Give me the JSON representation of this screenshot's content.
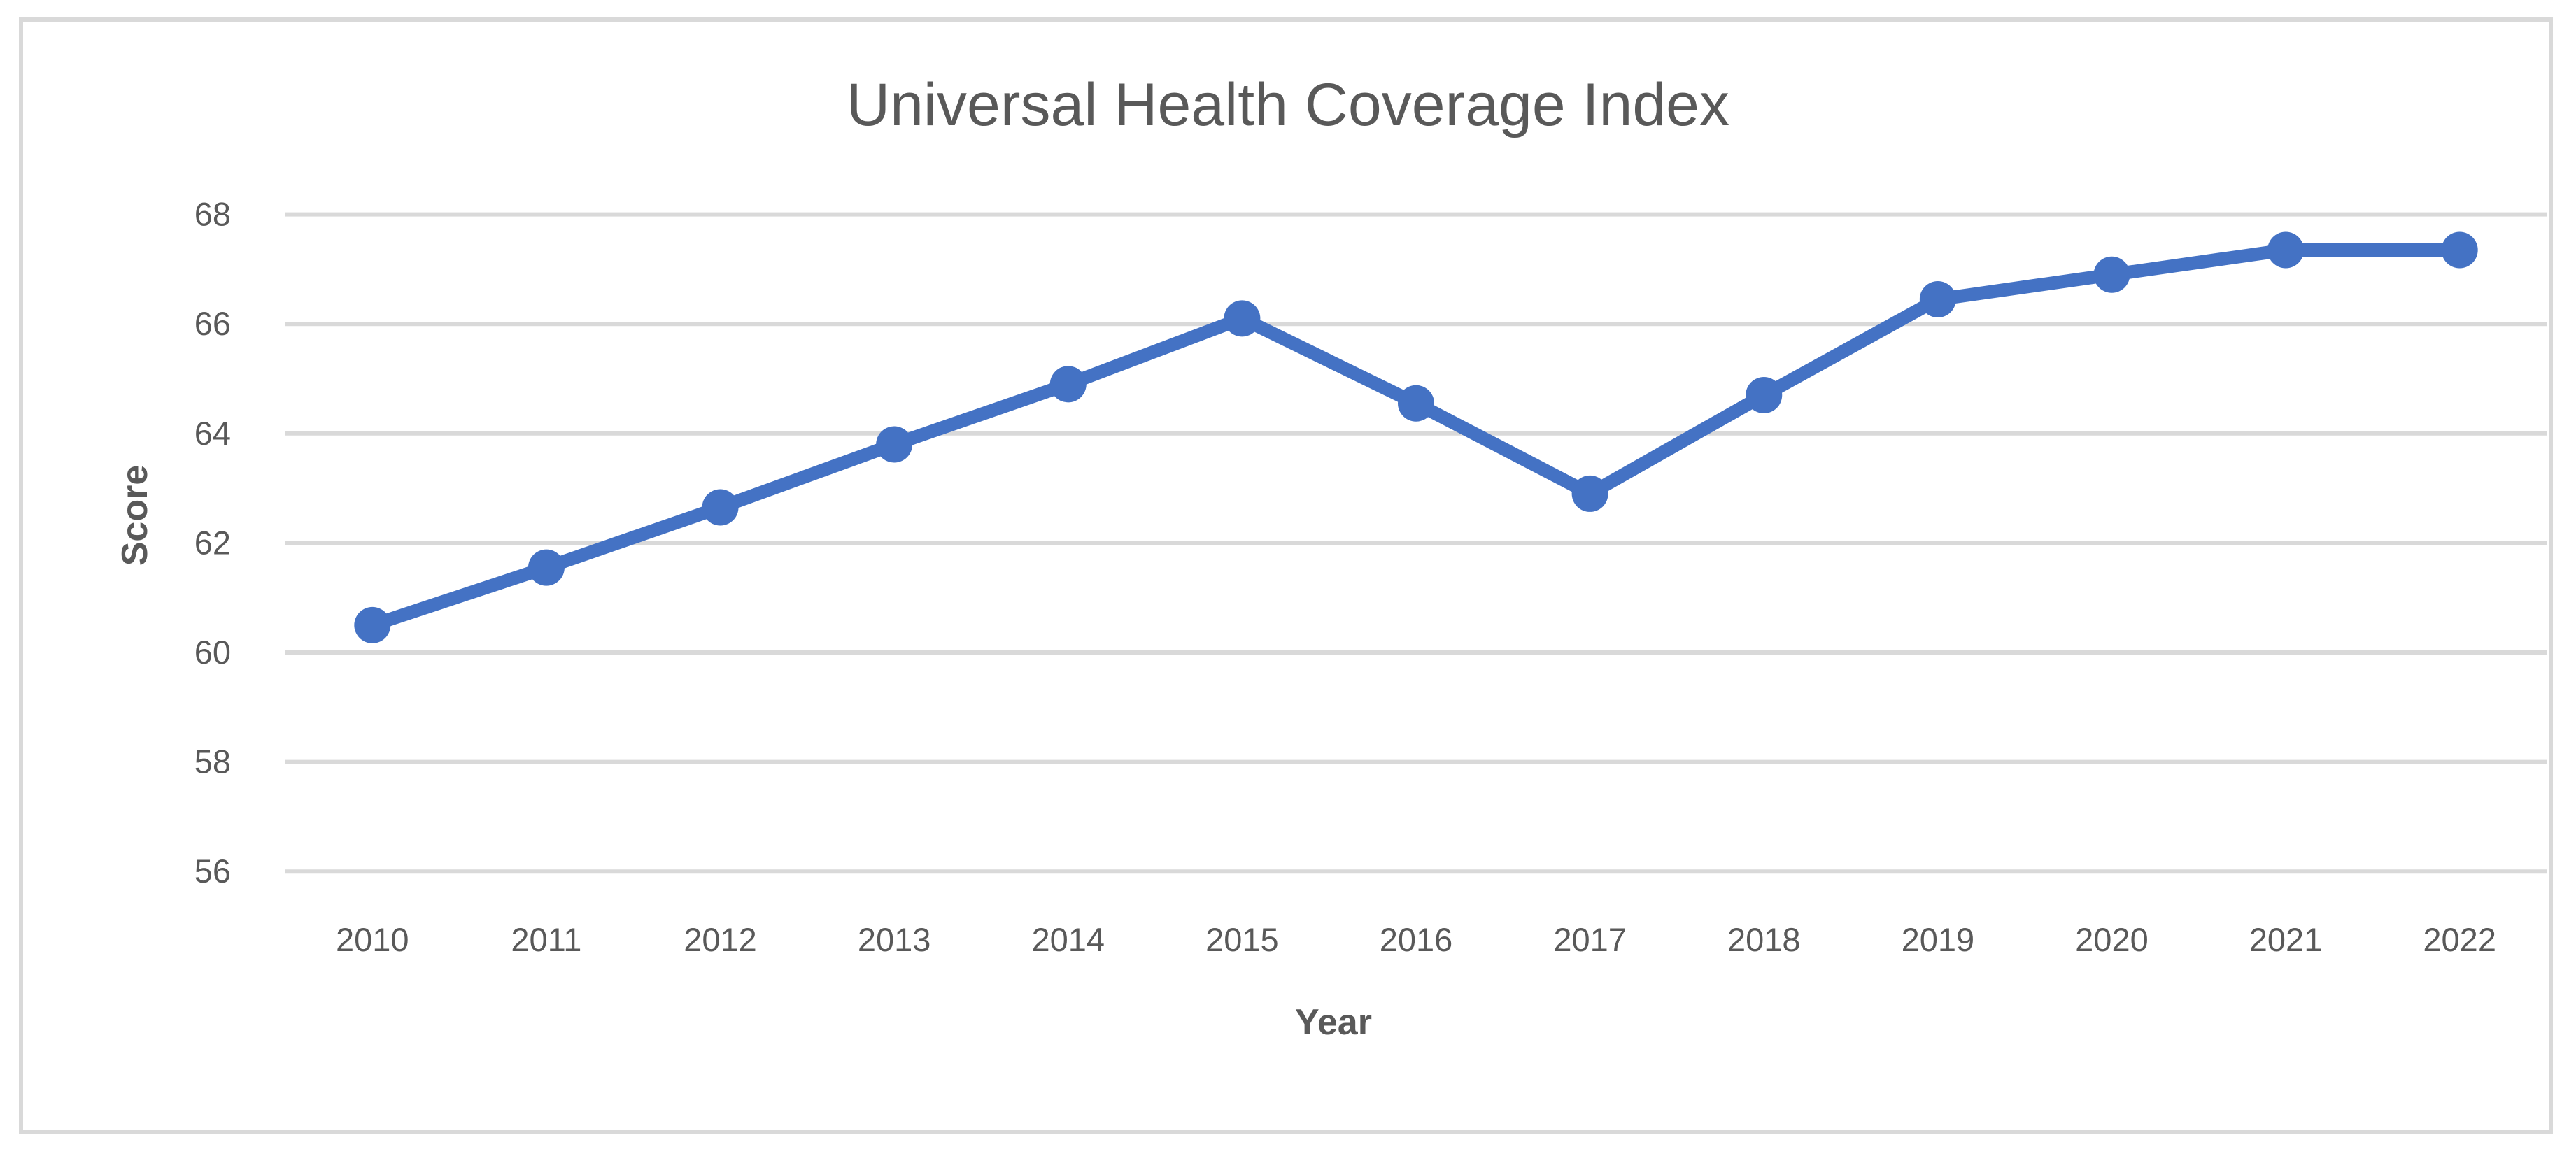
{
  "chart": {
    "title": "Universal Health Coverage Index",
    "y_axis_title": "Score",
    "x_axis_title": "Year",
    "colors": {
      "line": "#4472C4",
      "marker": "#4472C4",
      "gridline": "#D9D9D9",
      "frame_border": "#D9D9D9",
      "tick_label_text": "#595959",
      "title_text": "#595959",
      "axis_title_text": "#595959"
    }
  },
  "chart_data": {
    "type": "line",
    "title": "Universal Health Coverage Index",
    "xlabel": "Year",
    "ylabel": "Score",
    "categories": [
      "2010",
      "2011",
      "2012",
      "2013",
      "2014",
      "2015",
      "2016",
      "2017",
      "2018",
      "2019",
      "2020",
      "2021",
      "2022"
    ],
    "values": [
      60.5,
      61.55,
      62.65,
      63.8,
      64.9,
      66.1,
      64.55,
      62.9,
      64.7,
      66.45,
      66.9,
      67.35,
      67.35
    ],
    "series_name": "Universal Health Coverage Index",
    "ylim": [
      56,
      68
    ],
    "yticks": [
      56,
      58,
      60,
      62,
      64,
      66,
      68
    ],
    "grid": true,
    "legend": false,
    "marker": "circle",
    "line_color": "#4472C4"
  }
}
